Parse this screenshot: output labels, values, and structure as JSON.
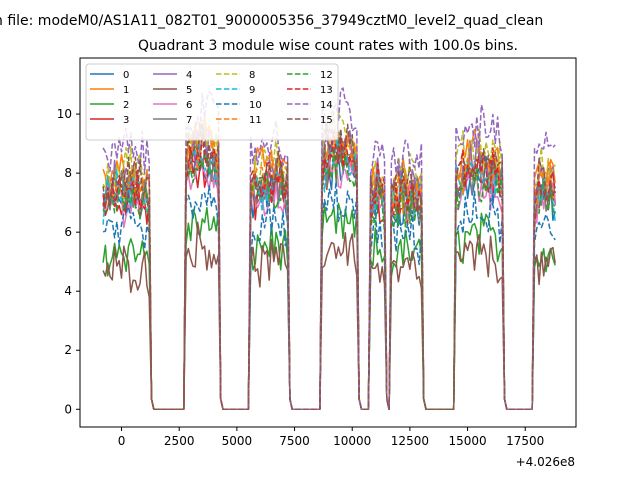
{
  "figure": {
    "suptitle": "n file: modeM0/AS1A11_082T01_9000005356_37949cztM0_level2_quad_clean",
    "offset_label": "+4.026e8"
  },
  "chart_data": {
    "type": "line",
    "title": "Quadrant 3 module wise count rates with 100.0s bins.",
    "xlabel": "",
    "ylabel": "",
    "x_offset": 402600000,
    "xlim": [
      -1800,
      19700
    ],
    "ylim": [
      -0.6,
      11.9
    ],
    "x_ticks": [
      0,
      2500,
      5000,
      7500,
      10000,
      12500,
      15000,
      17500
    ],
    "x_tick_labels": [
      "0",
      "2500",
      "5000",
      "7500",
      "10000",
      "12500",
      "15000",
      "17500"
    ],
    "y_ticks": [
      0,
      2,
      4,
      6,
      8,
      10
    ],
    "y_tick_labels": [
      "0",
      "2",
      "4",
      "6",
      "8",
      "10"
    ],
    "legend_position": "upper-left",
    "legend_columns": 4,
    "orbit_segments": [
      {
        "start": -800,
        "end": 1200,
        "zero_end": 2700
      },
      {
        "start": 2800,
        "end": 4200,
        "zero_end": 5500
      },
      {
        "start": 5600,
        "end": 7200,
        "zero_end": 8600
      },
      {
        "start": 8700,
        "end": 10200,
        "zero_end": 10700
      },
      {
        "start": 10800,
        "end": 11400,
        "zero_end": 11600
      },
      {
        "start": 11700,
        "end": 13000,
        "zero_end": 14400
      },
      {
        "start": 14500,
        "end": 16500,
        "zero_end": 17800
      },
      {
        "start": 17900,
        "end": 18800,
        "zero_end": null
      }
    ],
    "series": [
      {
        "name": "0",
        "color": "#1f77b4",
        "dash": "solid",
        "level": 7.0
      },
      {
        "name": "1",
        "color": "#ff7f0e",
        "dash": "solid",
        "level": 7.8
      },
      {
        "name": "2",
        "color": "#2ca02c",
        "dash": "solid",
        "level": 5.3
      },
      {
        "name": "3",
        "color": "#d62728",
        "dash": "solid",
        "level": 7.1
      },
      {
        "name": "4",
        "color": "#9467bd",
        "dash": "solid",
        "level": 7.6
      },
      {
        "name": "5",
        "color": "#8c564b",
        "dash": "solid",
        "level": 4.7
      },
      {
        "name": "6",
        "color": "#e377c2",
        "dash": "solid",
        "level": 6.9
      },
      {
        "name": "7",
        "color": "#7f7f7f",
        "dash": "solid",
        "level": 7.3
      },
      {
        "name": "8",
        "color": "#bcbd22",
        "dash": "dashed",
        "level": 8.0
      },
      {
        "name": "9",
        "color": "#17becf",
        "dash": "dashed",
        "level": 7.2
      },
      {
        "name": "10",
        "color": "#1f77b4",
        "dash": "dashed",
        "level": 5.9
      },
      {
        "name": "11",
        "color": "#ff7f0e",
        "dash": "dashed",
        "level": 7.5
      },
      {
        "name": "12",
        "color": "#2ca02c",
        "dash": "dashed",
        "level": 7.0
      },
      {
        "name": "13",
        "color": "#d62728",
        "dash": "dashed",
        "level": 7.4
      },
      {
        "name": "14",
        "color": "#9467bd",
        "dash": "dashed",
        "level": 8.6
      },
      {
        "name": "15",
        "color": "#8c564b",
        "dash": "dashed",
        "level": 7.7
      }
    ]
  }
}
